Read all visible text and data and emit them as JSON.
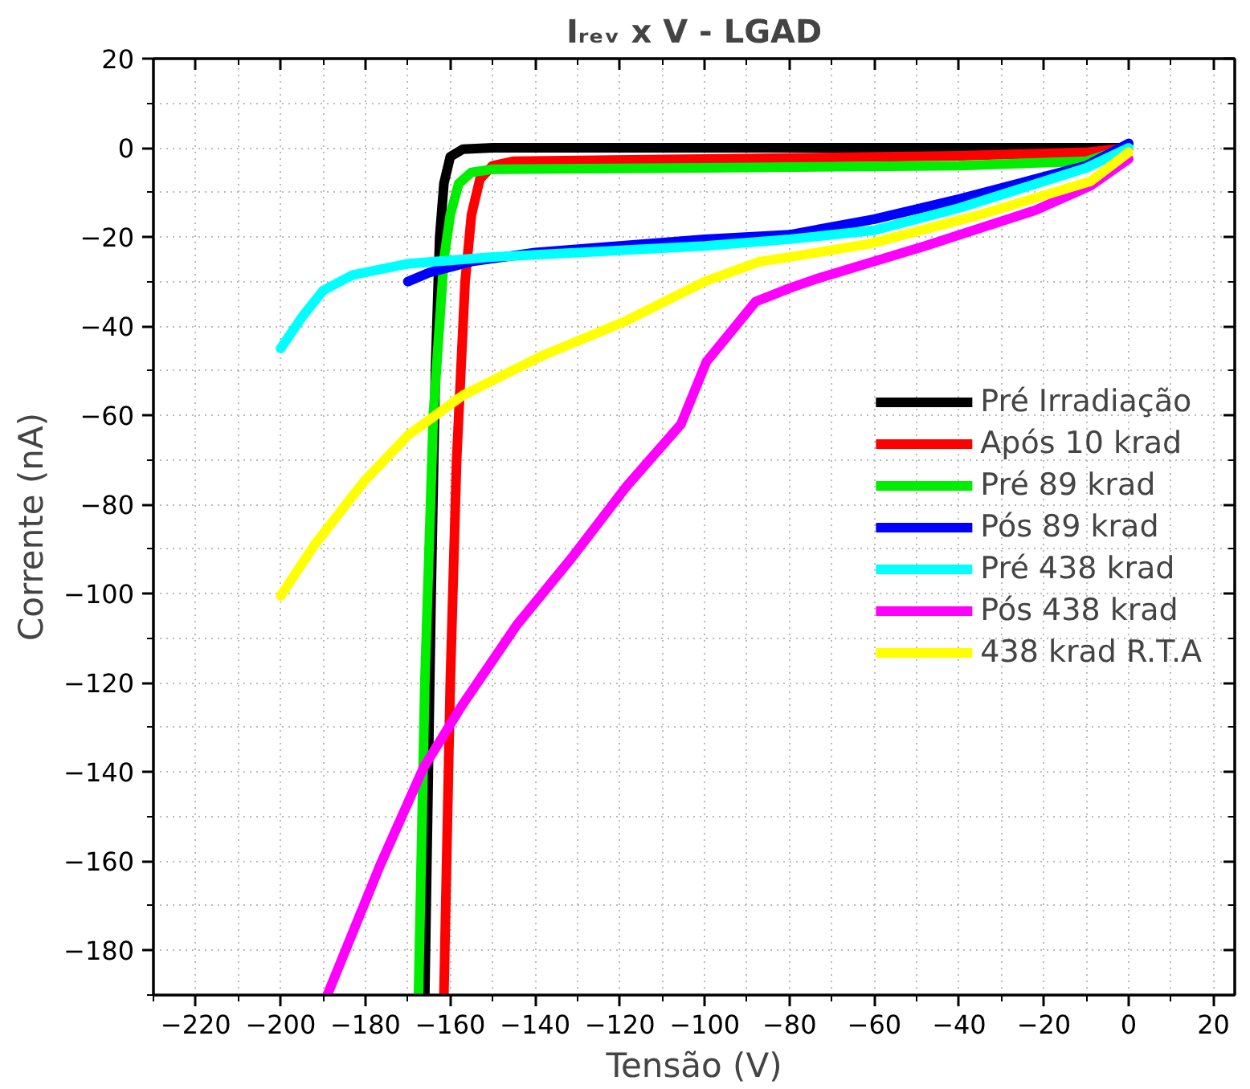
{
  "chart_data": {
    "type": "line",
    "title": "Iᵣₑᵥ x V - LGAD",
    "xlabel": "Tensão (V)",
    "ylabel": "Corrente (nA)",
    "xlim": [
      -230,
      25
    ],
    "ylim": [
      -190,
      20
    ],
    "xticks": [
      -220,
      -200,
      -180,
      -160,
      -140,
      -120,
      -100,
      -80,
      -60,
      -40,
      -20,
      0,
      20
    ],
    "yticks": [
      -180,
      -160,
      -140,
      -120,
      -100,
      -80,
      -60,
      -40,
      -20,
      0,
      20
    ],
    "grid": true,
    "legend": "right",
    "marker": "none",
    "line_style": "solid",
    "series": [
      {
        "name": "Pré Irradiação",
        "color": "#000000",
        "x": [
          -166,
          -164.5,
          -163.5,
          -162.5,
          -161.5,
          -160,
          -157,
          -150,
          -100,
          -50,
          0
        ],
        "values": [
          -190,
          -100,
          -50,
          -20,
          -8,
          -2,
          -0.3,
          0,
          0,
          0,
          0
        ]
      },
      {
        "name": "Após 10 krad",
        "color": "#ff0000",
        "x": [
          -161.5,
          -160,
          -158.5,
          -156.5,
          -155,
          -153,
          -150,
          -145,
          -100,
          -40,
          -10,
          0
        ],
        "values": [
          -190,
          -120,
          -70,
          -30,
          -15,
          -7,
          -4,
          -3,
          -2.5,
          -1.8,
          -1,
          0
        ]
      },
      {
        "name": "Pré 89 krad",
        "color": "#00ee00",
        "x": [
          -167.5,
          -166,
          -164,
          -161.5,
          -160,
          -158,
          -155,
          -150,
          -100,
          -40,
          -10,
          0
        ],
        "values": [
          -190,
          -120,
          -60,
          -25,
          -15,
          -8,
          -5.5,
          -4.8,
          -4.5,
          -4,
          -3,
          0
        ]
      },
      {
        "name": "Pós 89 krad",
        "color": "#0000ff",
        "x": [
          -170,
          -165,
          -155,
          -140,
          -120,
          -100,
          -80,
          -60,
          -40,
          -20,
          -10,
          0
        ],
        "values": [
          -30,
          -28,
          -25.5,
          -23.5,
          -22,
          -20.5,
          -19.5,
          -16,
          -11.5,
          -6.5,
          -4,
          1
        ]
      },
      {
        "name": "Pré 438 krad",
        "color": "#00ffff",
        "x": [
          -200,
          -195,
          -190,
          -183,
          -170,
          -150,
          -120,
          -100,
          -80,
          -60,
          -40,
          -20,
          -10,
          0
        ],
        "values": [
          -45,
          -38,
          -32,
          -28.5,
          -26,
          -24.5,
          -23,
          -22,
          -20.5,
          -18.5,
          -13.5,
          -7.5,
          -4.5,
          0
        ]
      },
      {
        "name": "Pós 438 krad",
        "color": "#ff00ff",
        "x": [
          -189,
          -176.6,
          -166.3,
          -157.2,
          -144.3,
          -131.4,
          -118.5,
          -105.6,
          -99.6,
          -88,
          -80,
          -74,
          -48,
          -22,
          -9,
          0
        ],
        "values": [
          -190,
          -161,
          -139,
          -125,
          -107,
          -92,
          -76,
          -62,
          -48,
          -34.5,
          -31.5,
          -29.5,
          -22,
          -14,
          -8.5,
          -2.5
        ]
      },
      {
        "name": "438 krad R.T.A",
        "color": "#ffff00",
        "x": [
          -200,
          -192,
          -180.5,
          -170,
          -157,
          -138,
          -118.5,
          -100,
          -87,
          -80,
          -61,
          -35,
          -9,
          0
        ],
        "values": [
          -100.5,
          -89,
          -75,
          -64.5,
          -55.5,
          -46.5,
          -38.8,
          -30,
          -25.5,
          -24.5,
          -21.5,
          -15,
          -7.5,
          -1
        ]
      }
    ]
  }
}
